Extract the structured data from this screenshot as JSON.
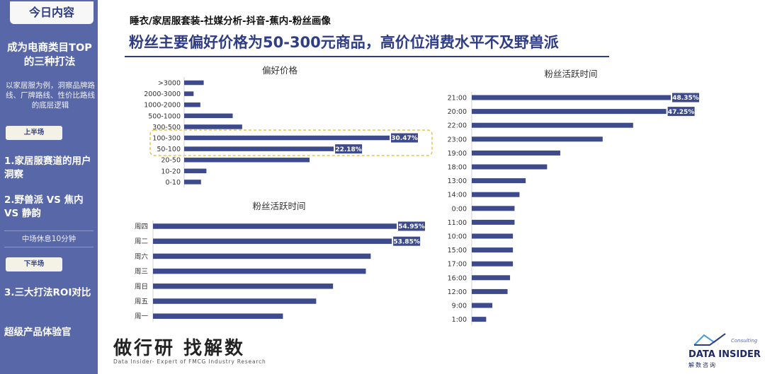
{
  "sidebar": {
    "today_label": "今日内容",
    "title": "成为电商类目TOP的三种打法",
    "desc": "以家居服为例，洞察品牌路线、厂牌路线、性价比路线的底层逻辑",
    "first_half": "上半场",
    "item1": "1.家居服赛道的用户洞察",
    "item2": "2.野兽派 VS 焦内 VS 静韵",
    "break": "中场休息10分钟",
    "second_half": "下半场",
    "item3": "3.三大打法ROI对比",
    "item4": "超级产品体验官"
  },
  "header": {
    "subtitle": "睡衣/家居服套装-社媒分析-抖音-蕉内-粉丝画像",
    "headline": "粉丝主要偏好价格为50-300元商品，高价位消费水平不及野兽派"
  },
  "brand": {
    "cn": "做行研 找解数",
    "en": "Data Insider- Expert of FMCG Industry Research",
    "logo": "DATA INSIDER",
    "logo_sub": "解数咨询",
    "logo_small": "Consulting"
  },
  "chart_data": [
    {
      "type": "bar",
      "orientation": "horizontal",
      "title": "偏好价格",
      "categories": [
        ">3000",
        "2000-3000",
        "1000-2000",
        "500-1000",
        "300-500",
        "100-300",
        "50-100",
        "20-50",
        "10-20",
        "0-10"
      ],
      "values": [
        2.9,
        1.4,
        2.4,
        7.2,
        8.6,
        30.47,
        22.18,
        18.6,
        3.3,
        2.5
      ],
      "labeled": [
        "30.47%",
        "22.18%"
      ],
      "highlight": [
        "100-300",
        "50-100"
      ],
      "unit": "%"
    },
    {
      "type": "bar",
      "orientation": "horizontal",
      "title": "粉丝活跃时间",
      "categories": [
        "周四",
        "周二",
        "周六",
        "周三",
        "周日",
        "周五",
        "周一"
      ],
      "values": [
        54.95,
        53.85,
        49.1,
        48.0,
        40.6,
        36.8,
        29.3
      ],
      "labeled": [
        "54.95%",
        "53.85%"
      ],
      "unit": "%"
    },
    {
      "type": "bar",
      "orientation": "horizontal",
      "title": "粉丝活跃时间",
      "categories": [
        "21:00",
        "20:00",
        "22:00",
        "23:00",
        "19:00",
        "18:00",
        "13:00",
        "14:00",
        "0:00",
        "11:00",
        "10:00",
        "15:00",
        "17:00",
        "16:00",
        "12:00",
        "9:00",
        "1:00"
      ],
      "values": [
        48.35,
        47.25,
        39.2,
        31.8,
        21.5,
        18.3,
        13.1,
        11.6,
        10.4,
        10.4,
        10.0,
        10.0,
        10.0,
        9.3,
        8.7,
        5.0,
        3.5
      ],
      "labeled": [
        "48.35%",
        "47.25%"
      ],
      "unit": "%"
    }
  ]
}
